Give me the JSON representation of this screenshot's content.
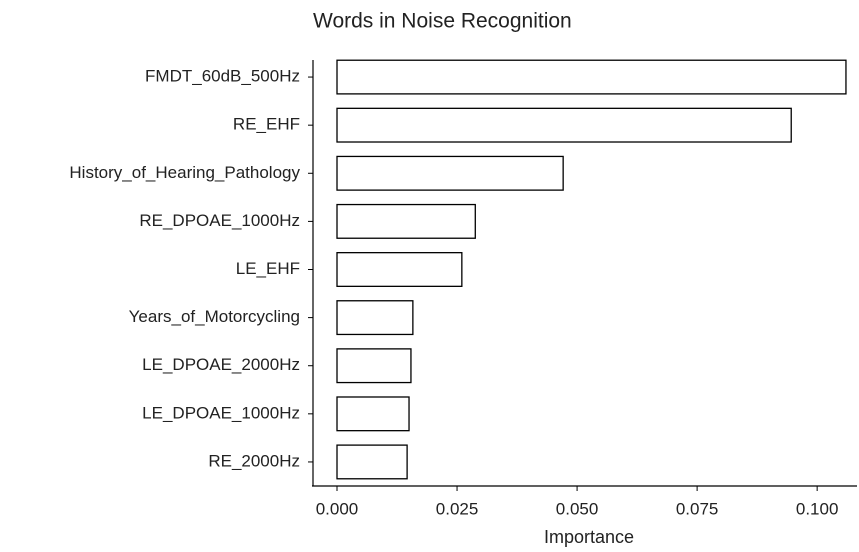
{
  "chart_data": {
    "type": "bar",
    "orientation": "horizontal",
    "title": "Words in Noise Recognition",
    "x_label": "Importance",
    "categories": [
      "FMDT_60dB_500Hz",
      "RE_EHF",
      "History_of_Hearing_Pathology",
      "RE_DPOAE_1000Hz",
      "LE_EHF",
      "Years_of_Motorcycling",
      "LE_DPOAE_2000Hz",
      "LE_DPOAE_1000Hz",
      "RE_2000Hz"
    ],
    "values": [
      0.106,
      0.0946,
      0.0471,
      0.0288,
      0.026,
      0.0158,
      0.0154,
      0.015,
      0.0146
    ],
    "color": "#ffffff",
    "edge_color": "#000000",
    "xlim": [
      -0.005,
      0.1083
    ],
    "xticks": [
      {
        "value": 0,
        "label": "0.000"
      },
      {
        "value": 0.025,
        "label": "0.025"
      },
      {
        "value": 0.05,
        "label": "0.050"
      },
      {
        "value": 0.075,
        "label": "0.075"
      },
      {
        "value": 0.1,
        "label": "0.100"
      }
    ],
    "grid": false
  }
}
